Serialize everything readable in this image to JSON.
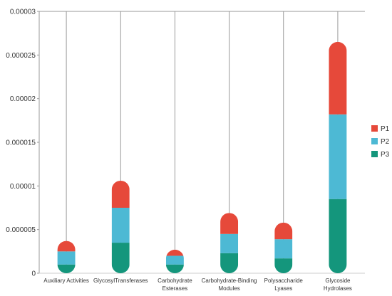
{
  "chart_data": {
    "type": "bar",
    "stacked": true,
    "orientation": "vertical",
    "bar_shape": "rounded-capsule",
    "categories": [
      "Auxiliary Activities",
      "GlycosylTransferases",
      "Carbohydrate Esterases",
      "Carbohydrate-Binding Modules",
      "Polysaccharide Lyases",
      "Glycoside Hydrolases"
    ],
    "category_label_lines": [
      [
        "Auxiliary Activities"
      ],
      [
        "GlycosylTransferases"
      ],
      [
        "Carbohydrate",
        "Esterases"
      ],
      [
        "Carbohydrate-Binding",
        "Modules"
      ],
      [
        "Polysaccharide",
        "Lyases"
      ],
      [
        "Glycoside",
        "Hydrolases"
      ]
    ],
    "series": [
      {
        "name": "P3",
        "color": "#14967c",
        "values": [
          1e-06,
          3.5e-06,
          1e-06,
          2.3e-06,
          1.7e-06,
          8.5e-06
        ]
      },
      {
        "name": "P2",
        "color": "#4db9d4",
        "values": [
          1.5e-06,
          4e-06,
          1e-06,
          2.2e-06,
          2.2e-06,
          9.7e-06
        ]
      },
      {
        "name": "P1",
        "color": "#e6493a",
        "values": [
          1.2e-06,
          3.1e-06,
          7e-07,
          2.4e-06,
          1.9e-06,
          8.3e-06
        ]
      }
    ],
    "legend_order": [
      "P1",
      "P2",
      "P3"
    ],
    "legend_position": "right",
    "ylim": [
      0,
      3e-05
    ],
    "y_ticks": [
      0,
      5e-06,
      1e-05,
      1.5e-05,
      2e-05,
      2.5e-05,
      3e-05
    ],
    "y_tick_labels": [
      "0",
      "0.000005",
      "0.00001",
      "0.000015",
      "0.00002",
      "0.000025",
      "0.00003"
    ],
    "grid": {
      "horizontal": false,
      "vertical": true,
      "color": "#999999"
    },
    "title": "",
    "xlabel": "",
    "ylabel": ""
  }
}
